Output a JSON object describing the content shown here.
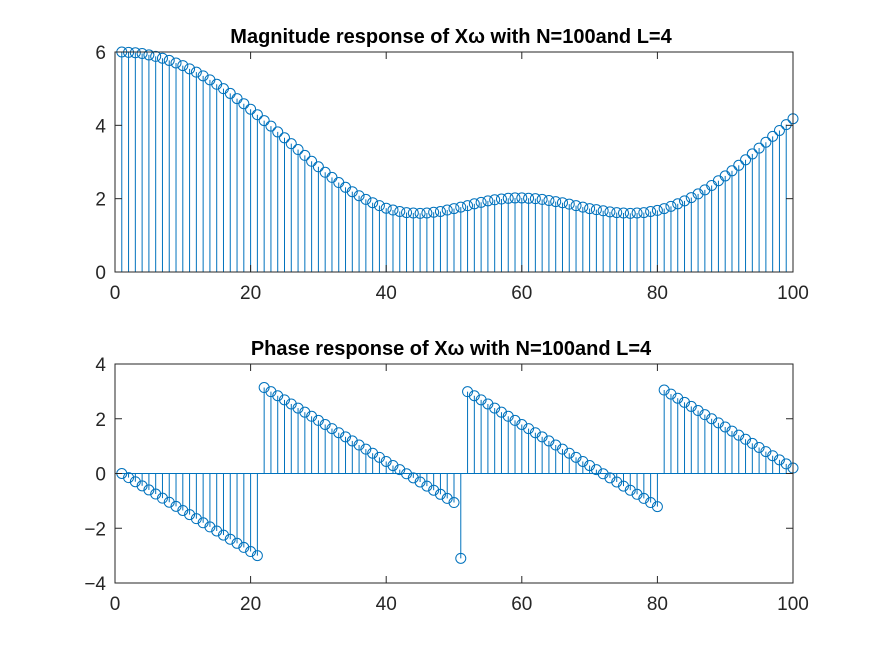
{
  "figure": {
    "background": "#ffffff",
    "stem_color": "#0072BD",
    "axes_color": "#262626"
  },
  "chart_data": [
    {
      "type": "stem",
      "title": "Magnitude response of Xω with N=100and L=4",
      "xlabel": "",
      "ylabel": "",
      "xlim": [
        0,
        100
      ],
      "ylim": [
        0,
        6
      ],
      "xticks": [
        "0",
        "20",
        "40",
        "60",
        "80",
        "100"
      ],
      "yticks": [
        "0",
        "2",
        "4",
        "6"
      ],
      "grid": false,
      "marker": "circle",
      "series": [
        {
          "x": [
            1,
            2,
            3,
            4,
            5,
            6,
            7,
            8,
            9,
            10,
            11,
            12,
            13,
            14,
            15,
            16,
            17,
            18,
            19,
            20,
            21,
            22,
            23,
            24,
            25,
            26,
            27,
            28,
            29,
            30,
            31,
            32,
            33,
            34,
            35,
            36,
            37,
            38,
            39,
            40,
            41,
            42,
            43,
            44,
            45,
            46,
            47,
            48,
            49,
            50,
            51,
            52,
            53,
            54,
            55,
            56,
            57,
            58,
            59,
            60,
            61,
            62,
            63,
            64,
            65,
            66,
            67,
            68,
            69,
            70,
            71,
            72,
            73,
            74,
            75,
            76,
            77,
            78,
            79,
            80,
            81,
            82,
            83,
            84,
            85,
            86,
            87,
            88,
            89,
            90,
            91,
            92,
            93,
            94,
            95,
            96,
            97,
            98,
            99,
            100
          ],
          "values": [
            6.0,
            5.99,
            5.98,
            5.96,
            5.92,
            5.88,
            5.83,
            5.77,
            5.7,
            5.63,
            5.54,
            5.45,
            5.35,
            5.24,
            5.12,
            5.0,
            4.87,
            4.73,
            4.59,
            4.44,
            4.29,
            4.13,
            3.98,
            3.82,
            3.66,
            3.5,
            3.34,
            3.18,
            3.02,
            2.87,
            2.72,
            2.58,
            2.44,
            2.31,
            2.19,
            2.08,
            1.98,
            1.89,
            1.81,
            1.74,
            1.69,
            1.65,
            1.62,
            1.61,
            1.6,
            1.61,
            1.63,
            1.65,
            1.69,
            1.73,
            1.77,
            1.81,
            1.86,
            1.9,
            1.94,
            1.97,
            1.99,
            2.01,
            2.02,
            2.02,
            2.01,
            2.0,
            1.98,
            1.95,
            1.92,
            1.89,
            1.85,
            1.81,
            1.77,
            1.73,
            1.7,
            1.67,
            1.64,
            1.62,
            1.61,
            1.6,
            1.61,
            1.62,
            1.65,
            1.68,
            1.73,
            1.79,
            1.86,
            1.94,
            2.03,
            2.13,
            2.24,
            2.36,
            2.49,
            2.62,
            2.76,
            2.91,
            3.06,
            3.22,
            3.38,
            3.54,
            3.7,
            3.86,
            4.02,
            4.18
          ]
        }
      ]
    },
    {
      "type": "stem",
      "title": "Phase response of Xω with N=100and L=4",
      "xlabel": "",
      "ylabel": "",
      "xlim": [
        0,
        100
      ],
      "ylim": [
        -4,
        4
      ],
      "xticks": [
        "0",
        "20",
        "40",
        "60",
        "80",
        "100"
      ],
      "yticks": [
        "−4",
        "−2",
        "0",
        "2",
        "4"
      ],
      "grid": false,
      "marker": "circle",
      "series": [
        {
          "x": [
            1,
            2,
            3,
            4,
            5,
            6,
            7,
            8,
            9,
            10,
            11,
            12,
            13,
            14,
            15,
            16,
            17,
            18,
            19,
            20,
            21,
            22,
            23,
            24,
            25,
            26,
            27,
            28,
            29,
            30,
            31,
            32,
            33,
            34,
            35,
            36,
            37,
            38,
            39,
            40,
            41,
            42,
            43,
            44,
            45,
            46,
            47,
            48,
            49,
            50,
            51,
            52,
            53,
            54,
            55,
            56,
            57,
            58,
            59,
            60,
            61,
            62,
            63,
            64,
            65,
            66,
            67,
            68,
            69,
            70,
            71,
            72,
            73,
            74,
            75,
            76,
            77,
            78,
            79,
            80,
            81,
            82,
            83,
            84,
            85,
            86,
            87,
            88,
            89,
            90,
            91,
            92,
            93,
            94,
            95,
            96,
            97,
            98,
            99,
            100
          ],
          "values": [
            0.0,
            -0.15,
            -0.3,
            -0.45,
            -0.6,
            -0.75,
            -0.9,
            -1.05,
            -1.2,
            -1.35,
            -1.5,
            -1.65,
            -1.8,
            -1.95,
            -2.1,
            -2.25,
            -2.4,
            -2.55,
            -2.7,
            -2.85,
            -3.0,
            3.14,
            2.99,
            2.84,
            2.69,
            2.54,
            2.39,
            2.24,
            2.09,
            1.94,
            1.79,
            1.64,
            1.49,
            1.34,
            1.19,
            1.04,
            0.89,
            0.74,
            0.59,
            0.44,
            0.29,
            0.14,
            -0.01,
            -0.16,
            -0.31,
            -0.46,
            -0.61,
            -0.76,
            -0.91,
            -1.06,
            -3.1,
            2.99,
            2.84,
            2.69,
            2.54,
            2.39,
            2.24,
            2.09,
            1.94,
            1.79,
            1.64,
            1.49,
            1.34,
            1.19,
            1.04,
            0.89,
            0.74,
            0.59,
            0.44,
            0.29,
            0.14,
            -0.01,
            -0.16,
            -0.31,
            -0.46,
            -0.61,
            -0.76,
            -0.91,
            -1.06,
            -1.21,
            3.05,
            2.9,
            2.75,
            2.6,
            2.45,
            2.3,
            2.15,
            2.0,
            1.85,
            1.7,
            1.55,
            1.4,
            1.25,
            1.1,
            0.95,
            0.8,
            0.65,
            0.5,
            0.35,
            0.2
          ]
        }
      ]
    }
  ]
}
